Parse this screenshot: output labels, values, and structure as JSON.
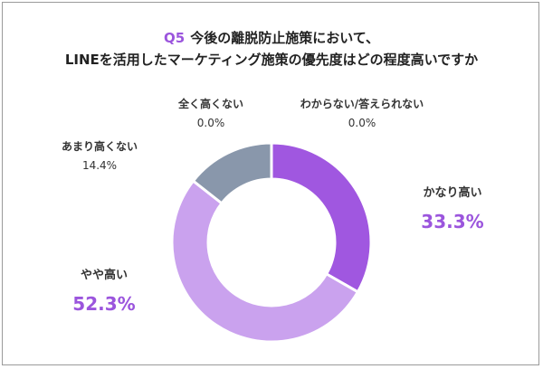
{
  "title": {
    "q_label": "Q5",
    "line1": "今後の離脱防止施策において、",
    "line2": "LINEを活用したマーケティング施策の優先度はどの程度高いですか"
  },
  "chart_data": {
    "type": "pie",
    "donut": true,
    "title": "Q5 今後の離脱防止施策において、LINEを活用したマーケティング施策の優先度はどの程度高いですか",
    "categories": [
      "かなり高い",
      "やや高い",
      "あまり高くない",
      "全く高くない",
      "わからない/答えられない"
    ],
    "values": [
      33.3,
      52.3,
      14.4,
      0.0,
      0.0
    ],
    "labels": [
      "33.3%",
      "52.3%",
      "14.4%",
      "0.0%",
      "0.0%"
    ],
    "colors": [
      "#a057e0",
      "#caa2ee",
      "#8997ab",
      "#7d8a9c",
      "#b08be0"
    ],
    "start": "12 o'clock, clockwise"
  }
}
